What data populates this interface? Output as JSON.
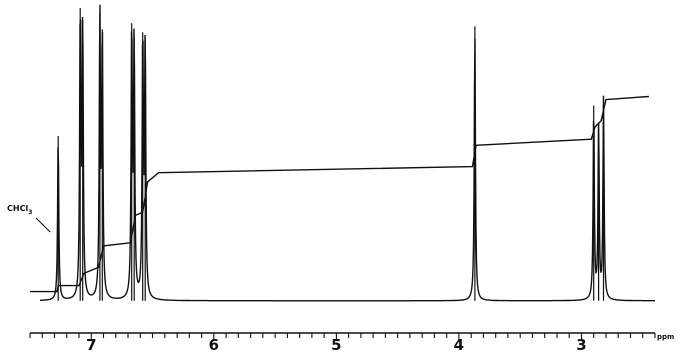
{
  "chart_data": {
    "type": "line",
    "title": "",
    "xlabel": "ppm",
    "ylabel": "",
    "xlim": [
      7.5,
      2.4
    ],
    "x_reversed": true,
    "x_ticks": [
      7,
      6,
      5,
      4,
      3
    ],
    "x_tick_labels": [
      "7",
      "6",
      "5",
      "4",
      "3"
    ],
    "grid": false,
    "legend": "none",
    "series": [
      {
        "kind": "spectrum",
        "baseline": 0.04,
        "peaks": [
          {
            "ppm": 7.27,
            "height": 0.58
          },
          {
            "ppm": 7.09,
            "height": 1.0
          },
          {
            "ppm": 7.07,
            "height": 0.96
          },
          {
            "ppm": 6.93,
            "height": 0.98
          },
          {
            "ppm": 6.91,
            "height": 0.93
          },
          {
            "ppm": 6.67,
            "height": 0.95
          },
          {
            "ppm": 6.65,
            "height": 0.9
          },
          {
            "ppm": 6.58,
            "height": 0.92
          },
          {
            "ppm": 6.56,
            "height": 0.9
          },
          {
            "ppm": 3.87,
            "height": 0.94
          },
          {
            "ppm": 2.9,
            "height": 0.68
          },
          {
            "ppm": 2.86,
            "height": 0.62
          },
          {
            "ppm": 2.82,
            "height": 0.7
          }
        ]
      },
      {
        "kind": "integral",
        "points": [
          [
            7.5,
            0.07
          ],
          [
            7.28,
            0.07
          ],
          [
            7.27,
            0.09
          ],
          [
            7.1,
            0.09
          ],
          [
            7.06,
            0.13
          ],
          [
            6.94,
            0.15
          ],
          [
            6.9,
            0.22
          ],
          [
            6.68,
            0.23
          ],
          [
            6.64,
            0.32
          ],
          [
            6.58,
            0.33
          ],
          [
            6.54,
            0.43
          ],
          [
            6.45,
            0.46
          ],
          [
            3.89,
            0.48
          ],
          [
            3.86,
            0.55
          ],
          [
            2.92,
            0.57
          ],
          [
            2.89,
            0.61
          ],
          [
            2.84,
            0.63
          ],
          [
            2.8,
            0.7
          ],
          [
            2.45,
            0.71
          ]
        ]
      }
    ],
    "annotations": [
      {
        "text": "CHCl",
        "sub": "3",
        "points_to_ppm": 7.27
      }
    ],
    "colors": {
      "trace": "#111111",
      "axis": "#111111"
    }
  }
}
